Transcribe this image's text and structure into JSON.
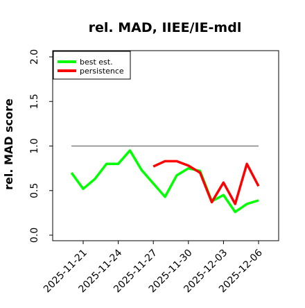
{
  "chart_data": {
    "type": "line",
    "title": "rel. MAD, IIEE/IE-mdl",
    "xlabel": "",
    "ylabel": "rel. MAD score",
    "x_ticks": [
      "2025-11-21",
      "2025-11-24",
      "2025-11-27",
      "2025-11-30",
      "2025-12-03",
      "2025-12-06"
    ],
    "y_ticks": [
      "0.0",
      "0.5",
      "1.0",
      "1.5",
      "2.0"
    ],
    "ylim": [
      0,
      2.1
    ],
    "xlim": [
      "2025-11-19",
      "2025-12-07"
    ],
    "grid": false,
    "legend": "top-left",
    "reference_line": {
      "y": 1.0,
      "from": "2025-11-20",
      "to": "2025-12-06",
      "color": "#808080"
    },
    "series": [
      {
        "name": "best est.",
        "color": "#00ff00",
        "points": [
          {
            "x": "2025-11-20",
            "y": 0.7
          },
          {
            "x": "2025-11-21",
            "y": 0.52
          },
          {
            "x": "2025-11-22",
            "y": 0.63
          },
          {
            "x": "2025-11-23",
            "y": 0.8
          },
          {
            "x": "2025-11-24",
            "y": 0.8
          },
          {
            "x": "2025-11-25",
            "y": 0.95
          },
          {
            "x": "2025-11-26",
            "y": 0.73
          },
          {
            "x": "2025-11-27",
            "y": 0.58
          },
          {
            "x": "2025-11-28",
            "y": 0.43
          },
          {
            "x": "2025-11-29",
            "y": 0.67
          },
          {
            "x": "2025-11-30",
            "y": 0.75
          },
          {
            "x": "2025-12-01",
            "y": 0.72
          },
          {
            "x": "2025-12-02",
            "y": 0.38
          },
          {
            "x": "2025-12-03",
            "y": 0.45
          },
          {
            "x": "2025-12-04",
            "y": 0.26
          },
          {
            "x": "2025-12-05",
            "y": 0.35
          },
          {
            "x": "2025-12-06",
            "y": 0.39
          }
        ]
      },
      {
        "name": "persistence",
        "color": "#ff0000",
        "points": [
          {
            "x": "2025-11-27",
            "y": 0.77
          },
          {
            "x": "2025-11-28",
            "y": 0.83
          },
          {
            "x": "2025-11-29",
            "y": 0.83
          },
          {
            "x": "2025-11-30",
            "y": 0.78
          },
          {
            "x": "2025-12-01",
            "y": 0.7
          },
          {
            "x": "2025-12-02",
            "y": 0.37
          },
          {
            "x": "2025-12-03",
            "y": 0.59
          },
          {
            "x": "2025-12-04",
            "y": 0.35
          },
          {
            "x": "2025-12-05",
            "y": 0.8
          },
          {
            "x": "2025-12-06",
            "y": 0.55
          }
        ]
      }
    ]
  }
}
